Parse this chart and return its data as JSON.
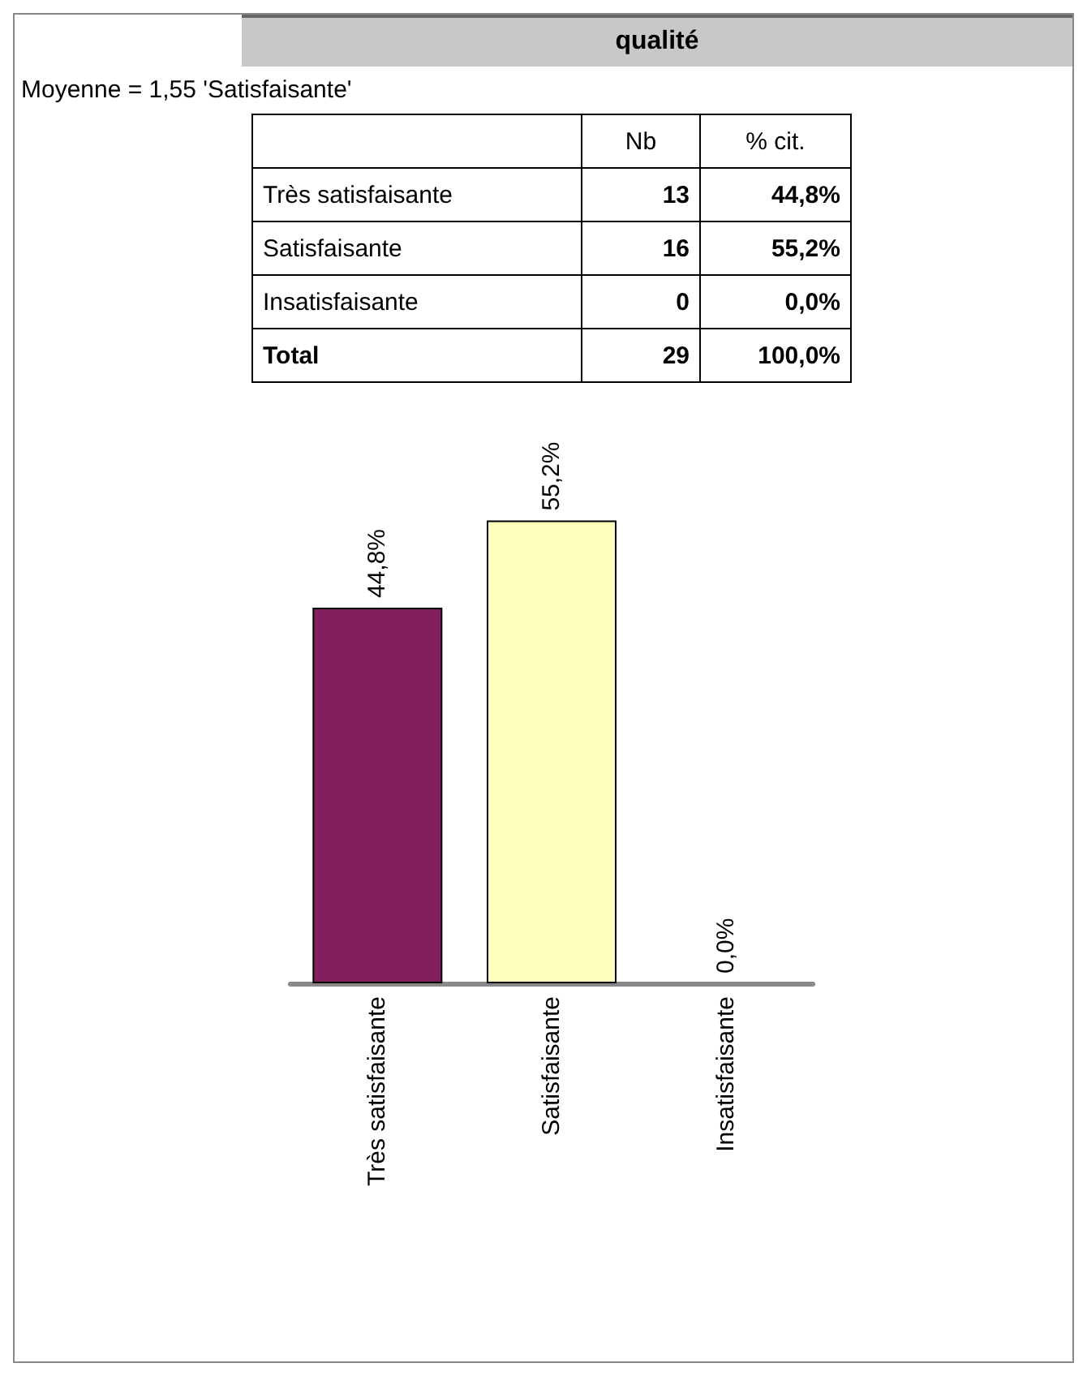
{
  "chart_data": {
    "type": "bar",
    "title": "qualité",
    "subtitle": "Moyenne = 1,55 'Satisfaisante'",
    "categories": [
      "Très satisfaisante",
      "Satisfaisante",
      "Insatisfaisante"
    ],
    "values": [
      44.8,
      55.2,
      0
    ],
    "colors": [
      "#82205e",
      "#ffffc0",
      null
    ],
    "value_labels": [
      "44,8%",
      "55,2%",
      "0,0%"
    ],
    "annotations": [
      "Nb",
      "% cit.",
      "Très satisfaisante",
      "13",
      "44,8%",
      "Satisfaisante",
      "16",
      "55,2%",
      "Insatisfaisante",
      "0",
      "0,0%",
      "Total",
      "29",
      "100,0%"
    ]
  }
}
